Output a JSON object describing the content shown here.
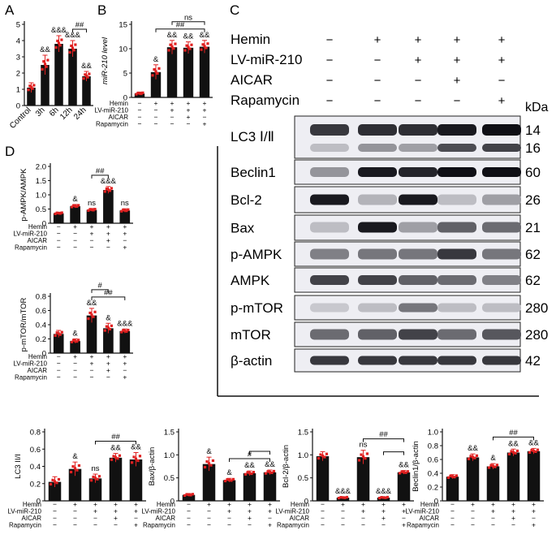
{
  "colors": {
    "bar": "#111111",
    "point": "#e02020",
    "axis": "#111111"
  },
  "panel_labels": {
    "A": "A",
    "B": "B",
    "C": "C",
    "D": "D"
  },
  "blot": {
    "row_labels": [
      "Hemin",
      "LV-miR-210",
      "AICAR",
      "Rapamycin"
    ],
    "row_signs": [
      [
        "−",
        "+",
        "+",
        "+",
        "+"
      ],
      [
        "−",
        "−",
        "+",
        "+",
        "+"
      ],
      [
        "−",
        "−",
        "−",
        "+",
        "−"
      ],
      [
        "−",
        "−",
        "−",
        "−",
        "+"
      ]
    ],
    "kda_header": "kDa",
    "proteins": [
      {
        "label": "LC3 Ⅰ/Ⅱ",
        "kda": [
          "14",
          "16"
        ]
      },
      {
        "label": "Beclin1",
        "kda": [
          "60"
        ]
      },
      {
        "label": "Bcl-2",
        "kda": [
          "26"
        ]
      },
      {
        "label": "Bax",
        "kda": [
          "21"
        ]
      },
      {
        "label": "p-AMPK",
        "kda": [
          "62"
        ]
      },
      {
        "label": "AMPK",
        "kda": [
          "62"
        ]
      },
      {
        "label": "p-mTOR",
        "kda": [
          "280"
        ]
      },
      {
        "label": "mTOR",
        "kda": [
          "280"
        ]
      },
      {
        "label": "β-actin",
        "kda": [
          "42"
        ]
      }
    ],
    "intensities": [
      [
        [
          0.8,
          0.85,
          0.85,
          0.95,
          1.0
        ],
        [
          0.15,
          0.35,
          0.3,
          0.7,
          0.75
        ]
      ],
      [
        [
          0.35,
          0.95,
          0.9,
          1.0,
          1.0
        ]
      ],
      [
        [
          0.95,
          0.2,
          0.95,
          0.15,
          0.3
        ]
      ],
      [
        [
          0.15,
          0.95,
          0.3,
          0.6,
          0.55
        ]
      ],
      [
        [
          0.45,
          0.5,
          0.5,
          0.8,
          0.5
        ]
      ],
      [
        [
          0.75,
          0.75,
          0.6,
          0.55,
          0.45
        ]
      ],
      [
        [
          0.1,
          0.15,
          0.5,
          0.15,
          0.15
        ]
      ],
      [
        [
          0.55,
          0.6,
          0.75,
          0.55,
          0.65
        ]
      ],
      [
        [
          0.8,
          0.8,
          0.8,
          0.8,
          0.8
        ]
      ]
    ]
  },
  "chart_data": [
    {
      "panel": "A",
      "type": "bar",
      "categories": [
        "Control",
        "3h",
        "6h",
        "12h",
        "24h"
      ],
      "values": [
        1.1,
        2.5,
        3.8,
        3.5,
        1.8
      ],
      "errors": [
        0.3,
        0.6,
        0.5,
        0.5,
        0.3
      ],
      "ylabel": "miR-210 level",
      "ylim": [
        0,
        5
      ],
      "yticks": [
        0,
        1,
        2,
        3,
        4,
        5
      ],
      "annotations": [
        "",
        "&&",
        "&&&",
        "&&&",
        "&&"
      ],
      "brackets": [
        {
          "from": 3,
          "to": 4,
          "label": "##"
        }
      ],
      "sign_rows": []
    },
    {
      "panel": "B",
      "type": "bar",
      "categories": [
        "1",
        "2",
        "3",
        "4",
        "5"
      ],
      "values": [
        0.8,
        5.2,
        10.3,
        10.2,
        10.4
      ],
      "errors": [
        0.3,
        1.5,
        1.4,
        1.2,
        1.3
      ],
      "ylabel": "miR-210 level",
      "ylim": [
        0,
        15
      ],
      "yticks": [
        0,
        5,
        10,
        15
      ],
      "annotations": [
        "",
        "&",
        "&&",
        "&&",
        "&&"
      ],
      "brackets": [
        {
          "from": 1,
          "to": 4,
          "label": "##"
        },
        {
          "from": 2,
          "to": 4,
          "label": "ns"
        }
      ],
      "sign_rows": [
        {
          "label": "Hemin",
          "signs": [
            "−",
            "+",
            "+",
            "+",
            "+"
          ]
        },
        {
          "label": "LV-miR-210",
          "signs": [
            "−",
            "−",
            "+",
            "+",
            "+"
          ]
        },
        {
          "label": "AICAR",
          "signs": [
            "−",
            "−",
            "−",
            "+",
            "−"
          ]
        },
        {
          "label": "Rapamycin",
          "signs": [
            "−",
            "−",
            "−",
            "−",
            "+"
          ]
        }
      ]
    },
    {
      "panel": "D1",
      "type": "bar",
      "categories": [
        "1",
        "2",
        "3",
        "4",
        "5"
      ],
      "values": [
        0.35,
        0.6,
        0.47,
        1.17,
        0.45
      ],
      "errors": [
        0.04,
        0.06,
        0.05,
        0.12,
        0.06
      ],
      "ylabel": "p-AMPK/AMPK",
      "ylim": [
        0,
        2.0
      ],
      "yticks": [
        0,
        0.5,
        1.0,
        1.5,
        2.0
      ],
      "annotations": [
        "",
        "&",
        "ns",
        "&&&",
        "ns"
      ],
      "brackets": [
        {
          "from": 2,
          "to": 3,
          "label": "##"
        }
      ],
      "sign_rows": [
        {
          "label": "Hemin",
          "signs": [
            "−",
            "+",
            "+",
            "+",
            "+"
          ]
        },
        {
          "label": "LV-miR-210",
          "signs": [
            "−",
            "−",
            "+",
            "+",
            "+"
          ]
        },
        {
          "label": "AICAR",
          "signs": [
            "−",
            "−",
            "−",
            "+",
            "−"
          ]
        },
        {
          "label": "Rapamycin",
          "signs": [
            "−",
            "−",
            "−",
            "−",
            "+"
          ]
        }
      ]
    },
    {
      "panel": "D2",
      "type": "bar",
      "categories": [
        "1",
        "2",
        "3",
        "4",
        "5"
      ],
      "values": [
        0.27,
        0.17,
        0.53,
        0.35,
        0.31
      ],
      "errors": [
        0.05,
        0.03,
        0.1,
        0.07,
        0.03
      ],
      "ylabel": "p-mTOR/mTOR",
      "ylim": [
        0,
        0.8
      ],
      "yticks": [
        0,
        0.2,
        0.4,
        0.6,
        0.8
      ],
      "annotations": [
        "",
        "&",
        "&&",
        "&",
        "&&&"
      ],
      "brackets": [
        {
          "from": 2,
          "to": 4,
          "label": "##"
        },
        {
          "from": 2,
          "to": 3,
          "label": "#"
        }
      ],
      "sign_rows": [
        {
          "label": "Hemin",
          "signs": [
            "−",
            "+",
            "+",
            "+",
            "+"
          ]
        },
        {
          "label": "LV-miR-210",
          "signs": [
            "−",
            "−",
            "+",
            "+",
            "+"
          ]
        },
        {
          "label": "AICAR",
          "signs": [
            "−",
            "−",
            "−",
            "+",
            "−"
          ]
        },
        {
          "label": "Rapamycin",
          "signs": [
            "−",
            "−",
            "−",
            "−",
            "+"
          ]
        }
      ]
    },
    {
      "panel": "E1",
      "type": "bar",
      "categories": [
        "1",
        "2",
        "3",
        "4",
        "5"
      ],
      "values": [
        0.22,
        0.37,
        0.26,
        0.5,
        0.48
      ],
      "errors": [
        0.06,
        0.08,
        0.05,
        0.05,
        0.08
      ],
      "ylabel": "LC3 II/I",
      "ylim": [
        0,
        0.8
      ],
      "yticks": [
        0,
        0.2,
        0.4,
        0.6,
        0.8
      ],
      "annotations": [
        "",
        "&",
        "ns",
        "&&",
        "&&"
      ],
      "brackets": [
        {
          "from": 2,
          "to": 4,
          "label": "##"
        }
      ],
      "sign_rows": [
        {
          "label": "Hemin",
          "signs": [
            "−",
            "+",
            "+",
            "+",
            "+"
          ]
        },
        {
          "label": "LV-miR-210",
          "signs": [
            "−",
            "−",
            "+",
            "+",
            "+"
          ]
        },
        {
          "label": "AICAR",
          "signs": [
            "−",
            "−",
            "−",
            "+",
            "−"
          ]
        },
        {
          "label": "Rapamycin",
          "signs": [
            "−",
            "−",
            "−",
            "−",
            "+"
          ]
        }
      ]
    },
    {
      "panel": "E2",
      "type": "bar",
      "categories": [
        "1",
        "2",
        "3",
        "4",
        "5"
      ],
      "values": [
        0.13,
        0.8,
        0.45,
        0.6,
        0.62
      ],
      "errors": [
        0.03,
        0.15,
        0.04,
        0.05,
        0.05
      ],
      "ylabel": "Bax/β-actin",
      "ylim": [
        0,
        1.5
      ],
      "yticks": [
        0,
        0.5,
        1.0,
        1.5
      ],
      "annotations": [
        "",
        "&",
        "&",
        "&&",
        "&&"
      ],
      "brackets": [
        {
          "from": 2,
          "to": 4,
          "label": "#"
        },
        {
          "from": 3,
          "to": 4,
          "label": ""
        }
      ],
      "sign_rows": [
        {
          "label": "Hemin",
          "signs": [
            "−",
            "+",
            "+",
            "+",
            "+"
          ]
        },
        {
          "label": "LV-miR-210",
          "signs": [
            "−",
            "−",
            "+",
            "+",
            "+"
          ]
        },
        {
          "label": "AICAR",
          "signs": [
            "−",
            "−",
            "−",
            "+",
            "−"
          ]
        },
        {
          "label": "Rapamycin",
          "signs": [
            "−",
            "−",
            "−",
            "−",
            "+"
          ]
        }
      ]
    },
    {
      "panel": "E3",
      "type": "bar",
      "categories": [
        "1",
        "2",
        "3",
        "4",
        "5"
      ],
      "values": [
        0.97,
        0.07,
        0.95,
        0.07,
        0.62
      ],
      "errors": [
        0.1,
        0.02,
        0.15,
        0.02,
        0.04
      ],
      "ylabel": "Bcl-2/β-actin",
      "ylim": [
        0,
        1.5
      ],
      "yticks": [
        0,
        0.5,
        1.0,
        1.5
      ],
      "annotations": [
        "",
        "&&&",
        "ns",
        "&&&",
        "&&"
      ],
      "brackets": [
        {
          "from": 2,
          "to": 4,
          "label": "##"
        },
        {
          "from": 3,
          "to": 4,
          "label": ""
        }
      ],
      "sign_rows": [
        {
          "label": "Hemin",
          "signs": [
            "−",
            "+",
            "+",
            "+",
            "+"
          ]
        },
        {
          "label": "LV-miR-210",
          "signs": [
            "−",
            "−",
            "+",
            "+",
            "+"
          ]
        },
        {
          "label": "AICAR",
          "signs": [
            "−",
            "−",
            "−",
            "+",
            "−"
          ]
        },
        {
          "label": "Rapamycin",
          "signs": [
            "−",
            "−",
            "−",
            "−",
            "+"
          ]
        }
      ]
    },
    {
      "panel": "E4",
      "type": "bar",
      "categories": [
        "1",
        "2",
        "3",
        "4",
        "5"
      ],
      "values": [
        0.35,
        0.63,
        0.5,
        0.7,
        0.72
      ],
      "errors": [
        0.03,
        0.05,
        0.04,
        0.05,
        0.04
      ],
      "ylabel": "Beclin1/β-actin",
      "ylim": [
        0,
        1.0
      ],
      "yticks": [
        0,
        0.2,
        0.4,
        0.6,
        0.8,
        1.0
      ],
      "annotations": [
        "",
        "&&",
        "&",
        "&&",
        "&&"
      ],
      "brackets": [
        {
          "from": 2,
          "to": 4,
          "label": "##"
        }
      ],
      "sign_rows": [
        {
          "label": "Hemin",
          "signs": [
            "−",
            "+",
            "+",
            "+",
            "+"
          ]
        },
        {
          "label": "LV-miR-210",
          "signs": [
            "−",
            "−",
            "+",
            "+",
            "+"
          ]
        },
        {
          "label": "AICAR",
          "signs": [
            "−",
            "−",
            "−",
            "+",
            "−"
          ]
        },
        {
          "label": "Rapamycin",
          "signs": [
            "−",
            "−",
            "−",
            "−",
            "+"
          ]
        }
      ]
    }
  ]
}
